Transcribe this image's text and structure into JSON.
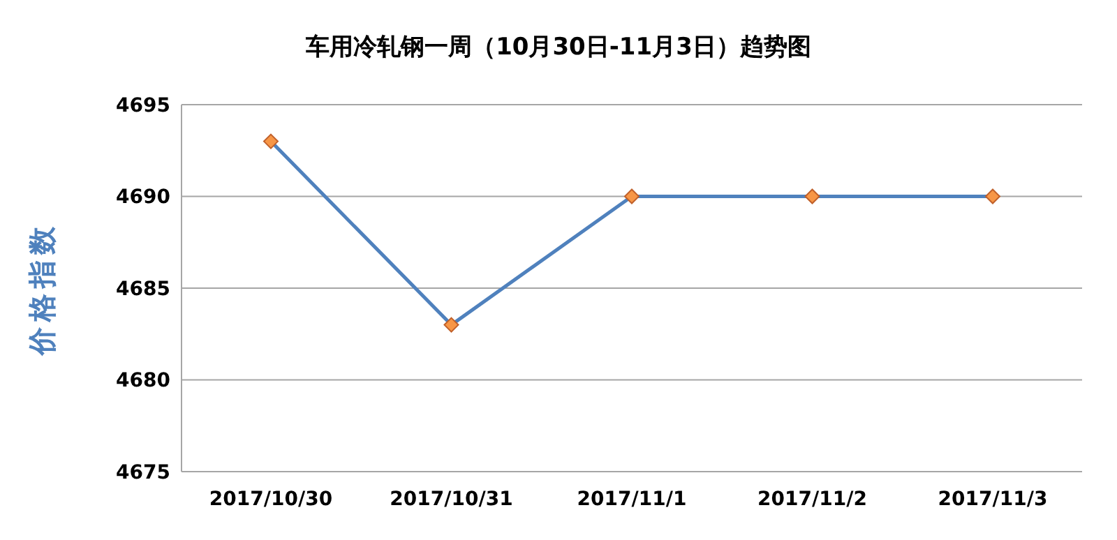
{
  "chart_data": {
    "type": "line",
    "title": "车用冷轧钢一周（10月30日-11月3日）趋势图",
    "ylabel": "价格指数",
    "categories": [
      "2017/10/30",
      "2017/10/31",
      "2017/11/1",
      "2017/11/2",
      "2017/11/3"
    ],
    "series": [
      {
        "color": "#4f81bd",
        "values": [
          4693,
          4683,
          4690,
          4690,
          4690
        ]
      }
    ],
    "ylim": [
      4675,
      4695
    ],
    "yticks": [
      4675,
      4680,
      4685,
      4690,
      4695
    ],
    "grid": "y",
    "marker": "diamond",
    "line_style": "solid",
    "legend": false
  }
}
